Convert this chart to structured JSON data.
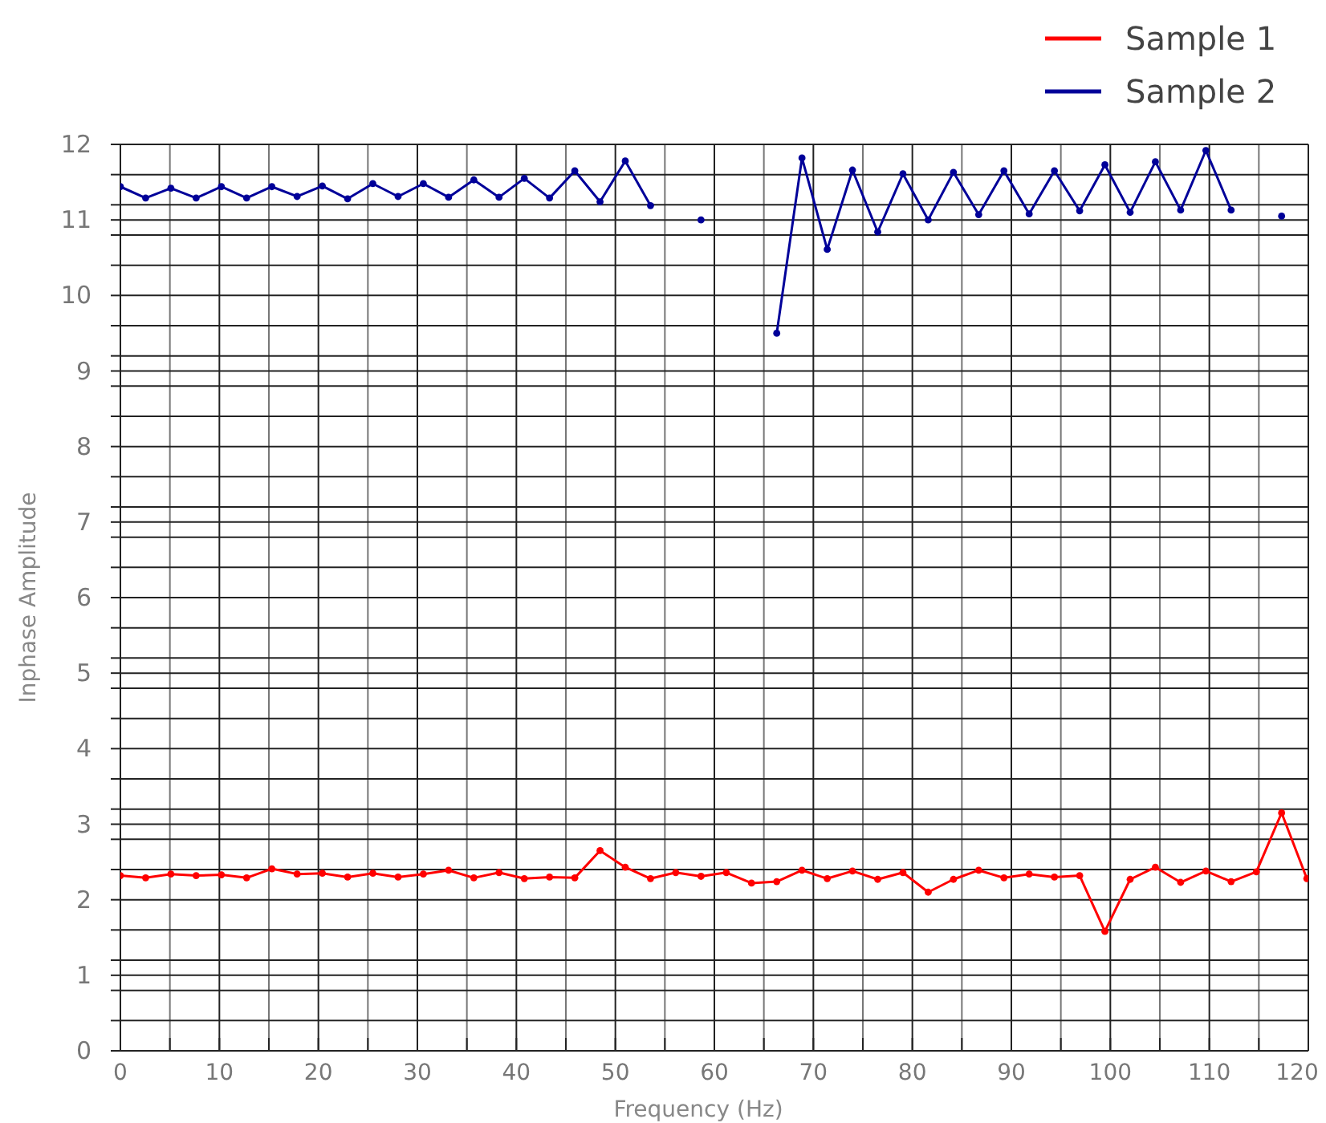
{
  "chart_data": {
    "type": "line",
    "xlabel": "Frequency (Hz)",
    "ylabel": "Inphase Amplitude",
    "x": [
      0,
      2.55,
      5.1,
      7.65,
      10.2,
      12.75,
      15.3,
      17.85,
      20.4,
      22.95,
      25.5,
      28.05,
      30.6,
      33.15,
      35.7,
      38.25,
      40.8,
      43.35,
      45.9,
      48.45,
      51,
      53.55,
      56.1,
      58.65,
      61.2,
      63.75,
      66.3,
      68.85,
      71.4,
      73.95,
      76.5,
      79.05,
      81.6,
      84.15,
      86.7,
      89.25,
      91.8,
      94.35,
      96.9,
      99.45,
      102,
      104.55,
      107.1,
      109.65,
      112.2,
      114.75,
      117.3,
      119.85
    ],
    "series": [
      {
        "name": "Sample 1",
        "color": "#ff0000",
        "values": [
          2.32,
          2.29,
          2.34,
          2.32,
          2.33,
          2.29,
          2.41,
          2.34,
          2.35,
          2.3,
          2.35,
          2.3,
          2.34,
          2.39,
          2.29,
          2.36,
          2.28,
          2.3,
          2.29,
          2.65,
          2.43,
          2.28,
          2.36,
          2.31,
          2.36,
          2.22,
          2.24,
          2.39,
          2.28,
          2.38,
          2.27,
          2.36,
          2.1,
          2.27,
          2.39,
          2.29,
          2.34,
          2.3,
          2.32,
          1.58,
          2.27,
          2.43,
          2.23,
          2.38,
          2.24,
          2.37,
          3.15,
          2.28
        ]
      },
      {
        "name": "Sample 2",
        "color": "#000099",
        "values": [
          11.44,
          11.29,
          11.42,
          11.29,
          11.44,
          11.29,
          11.44,
          11.31,
          11.45,
          11.28,
          11.48,
          11.31,
          11.48,
          11.3,
          11.53,
          11.3,
          11.55,
          11.29,
          11.65,
          11.24,
          11.78,
          11.19,
          null,
          11.0,
          null,
          null,
          9.5,
          11.82,
          10.61,
          11.66,
          10.84,
          11.61,
          11.0,
          11.63,
          11.07,
          11.65,
          11.08,
          11.65,
          11.12,
          11.73,
          11.1,
          11.77,
          11.13,
          11.92,
          11.13,
          null,
          11.05,
          null
        ]
      }
    ],
    "xlim": [
      0,
      120
    ],
    "xticks": [
      0,
      {
        "value": 5,
        "label": null
      },
      10,
      {
        "value": 15,
        "label": null
      },
      20,
      {
        "value": 25,
        "label": null
      },
      30,
      {
        "value": 35,
        "label": null
      },
      40,
      {
        "value": 45,
        "label": null
      },
      50,
      {
        "value": 55,
        "label": null
      },
      60,
      {
        "value": 65,
        "label": null
      },
      70,
      {
        "value": 75,
        "label": null
      },
      80,
      {
        "value": 85,
        "label": null
      },
      90,
      {
        "value": 95,
        "label": null
      },
      100,
      {
        "value": 105,
        "label": null
      },
      110,
      {
        "value": 115,
        "label": null
      },
      120
    ],
    "ylim": [
      0,
      12
    ],
    "yticks": [
      0,
      {
        "value": 0.4,
        "label": null
      },
      {
        "value": 0.8,
        "label": null
      },
      1,
      {
        "value": 1.2,
        "label": null
      },
      {
        "value": 1.6,
        "label": null
      },
      2,
      {
        "value": 2.4,
        "label": null
      },
      {
        "value": 2.8,
        "label": null
      },
      3,
      {
        "value": 3.2,
        "label": null
      },
      {
        "value": 3.6,
        "label": null
      },
      4,
      {
        "value": 4.4,
        "label": null
      },
      {
        "value": 4.8,
        "label": null
      },
      5,
      {
        "value": 5.2,
        "label": null
      },
      {
        "value": 5.6,
        "label": null
      },
      6,
      {
        "value": 6.4,
        "label": null
      },
      {
        "value": 6.8,
        "label": null
      },
      7,
      {
        "value": 7.2,
        "label": null
      },
      {
        "value": 7.6,
        "label": null
      },
      8,
      {
        "value": 8.4,
        "label": null
      },
      {
        "value": 8.8,
        "label": null
      },
      9,
      {
        "value": 9.2,
        "label": null
      },
      {
        "value": 9.6,
        "label": null
      },
      10,
      {
        "value": 10.4,
        "label": null
      },
      {
        "value": 10.8,
        "label": null
      },
      11,
      {
        "value": 11.2,
        "label": null
      },
      {
        "value": 11.6,
        "label": null
      },
      12
    ],
    "grid": true,
    "legend": "top right",
    "marker": "circle",
    "line_style": "solid"
  }
}
